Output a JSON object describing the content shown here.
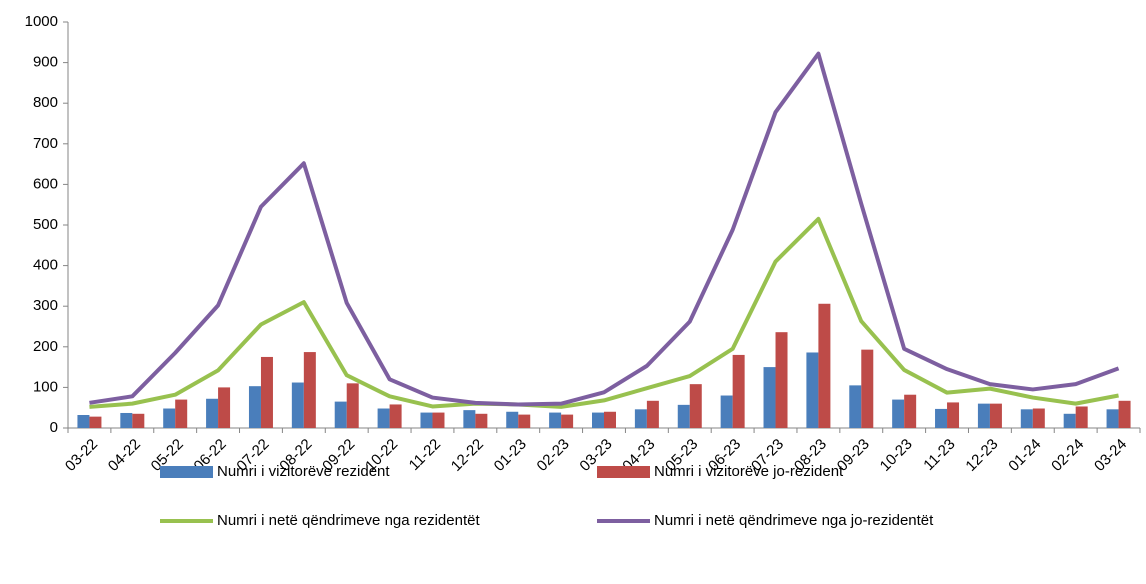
{
  "chart_data": {
    "type": "combo",
    "categories": [
      "03-22",
      "04-22",
      "05-22",
      "06-22",
      "07-22",
      "08-22",
      "09-22",
      "10-22",
      "11-22",
      "12-22",
      "01-23",
      "02-23",
      "03-23",
      "04-23",
      "05-23",
      "06-23",
      "07-23",
      "08-23",
      "09-23",
      "10-23",
      "11-23",
      "12-23",
      "01-24",
      "02-24",
      "03-24"
    ],
    "series": [
      {
        "name": "Numri i vizitorëve rezident",
        "kind": "bar",
        "color": "#4a7ebb",
        "values": [
          32,
          37,
          48,
          72,
          103,
          112,
          65,
          48,
          38,
          44,
          40,
          38,
          38,
          46,
          57,
          80,
          150,
          186,
          105,
          70,
          47,
          60,
          46,
          35,
          46
        ]
      },
      {
        "name": "Numri i vizitorëve jo-rezident",
        "kind": "bar",
        "color": "#be4b48",
        "values": [
          28,
          35,
          70,
          100,
          175,
          187,
          110,
          58,
          38,
          35,
          33,
          33,
          40,
          67,
          108,
          180,
          236,
          306,
          193,
          82,
          63,
          60,
          48,
          53,
          67
        ]
      },
      {
        "name": "Numri i netë qëndrimeve nga rezidentët",
        "kind": "line",
        "color": "#98c14f",
        "values": [
          52,
          60,
          82,
          142,
          255,
          310,
          130,
          78,
          53,
          60,
          58,
          52,
          68,
          98,
          128,
          195,
          410,
          515,
          263,
          143,
          87,
          97,
          75,
          60,
          80
        ]
      },
      {
        "name": "Numri i netë qëndrimeve nga jo-rezidentët",
        "kind": "line",
        "color": "#7d5fa0",
        "values": [
          62,
          78,
          185,
          302,
          545,
          652,
          308,
          120,
          75,
          62,
          58,
          60,
          88,
          153,
          262,
          488,
          778,
          922,
          552,
          195,
          145,
          108,
          95,
          108,
          147
        ]
      }
    ],
    "ylim": [
      0,
      1000
    ],
    "yticks": [
      0,
      100,
      200,
      300,
      400,
      500,
      600,
      700,
      800,
      900,
      1000
    ],
    "grid": false,
    "legend": "bottom"
  }
}
